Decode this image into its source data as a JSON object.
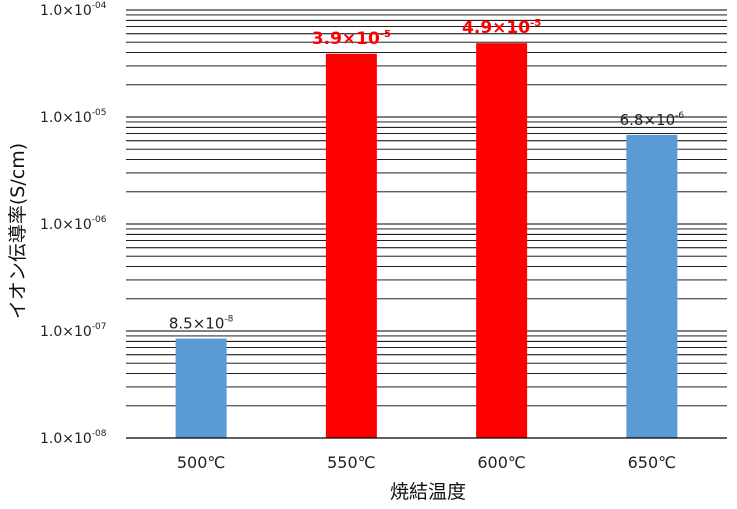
{
  "chart_data": {
    "type": "bar",
    "y_scale": "log",
    "ylim": [
      1e-08,
      0.0001
    ],
    "grid": true,
    "xlabel": "焼結温度",
    "ylabel": "イオン伝導率(S/cm)",
    "categories": [
      "500℃",
      "550℃",
      "600℃",
      "650℃"
    ],
    "values": [
      8.5e-08,
      3.9e-05,
      4.9e-05,
      6.8e-06
    ],
    "bar_colors": [
      "#5b9bd5",
      "#ff0000",
      "#ff0000",
      "#5b9bd5"
    ],
    "data_labels": [
      {
        "mantissa": "8.5×10",
        "exponent": "-8",
        "highlight": false
      },
      {
        "mantissa": "3.9×10",
        "exponent": "-5",
        "highlight": true
      },
      {
        "mantissa": "4.9×10",
        "exponent": "-5",
        "highlight": true
      },
      {
        "mantissa": "6.8×10",
        "exponent": "-6",
        "highlight": false
      }
    ],
    "y_ticks": [
      {
        "value": 0.0001,
        "mantissa": "1.0×10",
        "exponent": "-04"
      },
      {
        "value": 1e-05,
        "mantissa": "1.0×10",
        "exponent": "-05"
      },
      {
        "value": 1e-06,
        "mantissa": "1.0×10",
        "exponent": "-06"
      },
      {
        "value": 1e-07,
        "mantissa": "1.0×10",
        "exponent": "-07"
      },
      {
        "value": 1e-08,
        "mantissa": "1.0×10",
        "exponent": "-08"
      }
    ]
  }
}
